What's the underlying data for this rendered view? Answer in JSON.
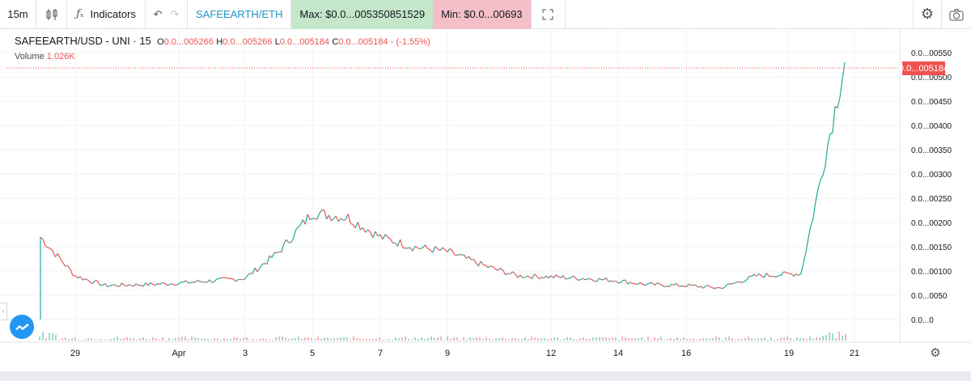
{
  "toolbar": {
    "interval": "15m",
    "indicators_label": "Indicators",
    "symbol": "SAFEEARTH/ETH",
    "max_label": "Max: $0.0...005350851529",
    "min_label": "Min: $0.0...00693"
  },
  "legend": {
    "title": "SAFEEARTH/USD - UNI · 15",
    "o_label": "O",
    "o_value": "0.0...005266",
    "h_label": "H",
    "h_value": "0.0...005266",
    "l_label": "L",
    "l_value": "0.0...005184",
    "c_label": "C",
    "c_value": "0.0...005184",
    "change": "- (-1.55%)",
    "volume_label": "Volume",
    "volume_value": "1.026K"
  },
  "current_price_tag": "0.0...005184",
  "colors": {
    "up": "#26a69a",
    "down": "#ef5350",
    "accent": "#2196f3"
  },
  "chart_data": {
    "type": "line",
    "series": [
      {
        "x": [
          "28",
          "29",
          "30",
          "31",
          "Apr",
          "2",
          "3",
          "4",
          "5",
          "6",
          "7",
          "8",
          "9",
          "10",
          "11",
          "12",
          "13",
          "14",
          "15",
          "16",
          "17",
          "18",
          "19",
          "20"
        ],
        "y": [
          0.0017,
          0.0009,
          0.0007,
          0.00072,
          0.00075,
          0.0008,
          0.00085,
          0.0014,
          0.0022,
          0.0021,
          0.0017,
          0.0015,
          0.0014,
          0.0011,
          0.0009,
          0.00088,
          0.00085,
          0.0008,
          0.00072,
          0.0007,
          0.00065,
          0.0009,
          0.00095,
          0.0053
        ]
      }
    ],
    "yticks": [
      "0.0...00550",
      "0.0...00500",
      "0.0...00450",
      "0.0...00400",
      "0.0...00350",
      "0.0...00300",
      "0.0...00250",
      "0.0...00200",
      "0.0...00150",
      "0.0...00100",
      "0.0...0050",
      "0.0...0"
    ],
    "xticks": [
      "29",
      "Apr",
      "3",
      "5",
      "7",
      "9",
      "12",
      "14",
      "16",
      "19",
      "21"
    ],
    "ylim": [
      0,
      0.0056
    ],
    "grid": true
  }
}
